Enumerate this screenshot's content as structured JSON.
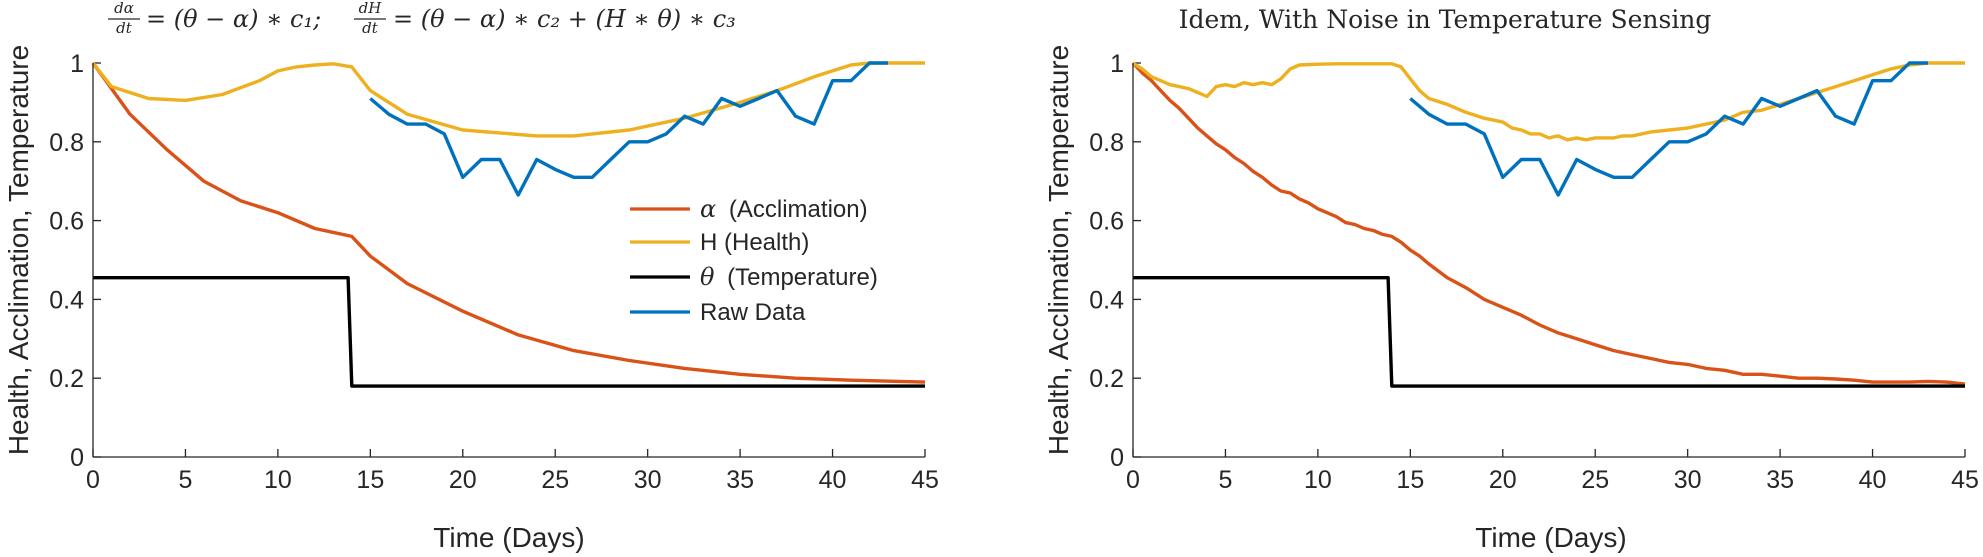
{
  "chart_data": [
    {
      "type": "line",
      "title_parts": {
        "frac1_num": "dα",
        "frac1_den": "dt",
        "eq1": "= (θ − α) ∗ c₁;",
        "frac2_num": "dH",
        "frac2_den": "dt",
        "eq2": "= (θ − α) ∗ c₂ + (H ∗ θ) ∗ c₃"
      },
      "xlabel": "Time (Days)",
      "ylabel": "Health, Acclimation, Temperature",
      "xlim": [
        0,
        45
      ],
      "ylim": [
        0,
        1
      ],
      "xticks": [
        0,
        5,
        10,
        15,
        20,
        25,
        30,
        35,
        40,
        45
      ],
      "yticks": [
        0,
        0.2,
        0.4,
        0.6,
        0.8,
        1
      ],
      "ytick_labels": [
        "0",
        "0.2",
        "0.4",
        "0.6",
        "0.8",
        "1"
      ],
      "grid": false,
      "legend": {
        "placement": "center-right",
        "entries": [
          {
            "symbol": "α",
            "text": "(Acclimation)",
            "series": "acclimation"
          },
          {
            "symbol": "",
            "text": "H (Health)",
            "series": "health"
          },
          {
            "symbol": "θ",
            "text": "(Temperature)",
            "series": "temperature"
          },
          {
            "symbol": "",
            "text": "Raw Data",
            "series": "raw"
          }
        ]
      },
      "series": [
        {
          "key": "acclimation",
          "color": "#D95319",
          "x": [
            0,
            2,
            4,
            6,
            8,
            10,
            12,
            13,
            14,
            15,
            17,
            20,
            23,
            26,
            29,
            32,
            35,
            38,
            41,
            45
          ],
          "y": [
            1.0,
            0.87,
            0.78,
            0.7,
            0.65,
            0.62,
            0.58,
            0.57,
            0.56,
            0.51,
            0.44,
            0.37,
            0.31,
            0.27,
            0.245,
            0.225,
            0.21,
            0.2,
            0.195,
            0.19
          ]
        },
        {
          "key": "health",
          "color": "#EDB120",
          "x": [
            0,
            1,
            3,
            5,
            7,
            9,
            10,
            11,
            12,
            13,
            14,
            15,
            17,
            20,
            24,
            26,
            29,
            32,
            35,
            37,
            39,
            41,
            42,
            45
          ],
          "y": [
            1.0,
            0.94,
            0.91,
            0.905,
            0.92,
            0.955,
            0.98,
            0.99,
            0.995,
            0.998,
            0.99,
            0.93,
            0.87,
            0.83,
            0.815,
            0.815,
            0.83,
            0.86,
            0.9,
            0.93,
            0.965,
            0.995,
            1.0,
            1.0
          ]
        },
        {
          "key": "temperature",
          "color": "#000000",
          "x": [
            0,
            13.8,
            14,
            45
          ],
          "y": [
            0.455,
            0.455,
            0.18,
            0.18
          ]
        },
        {
          "key": "raw",
          "color": "#0072BD",
          "x": [
            15,
            16,
            17,
            18,
            19,
            20,
            21,
            22,
            23,
            24,
            25,
            26,
            27,
            28,
            29,
            30,
            31,
            32,
            33,
            34,
            35,
            36,
            37,
            38,
            39,
            40,
            41,
            42,
            43
          ],
          "y": [
            0.91,
            0.87,
            0.845,
            0.845,
            0.82,
            0.71,
            0.755,
            0.755,
            0.665,
            0.755,
            0.73,
            0.71,
            0.71,
            0.755,
            0.8,
            0.8,
            0.82,
            0.865,
            0.845,
            0.91,
            0.89,
            0.91,
            0.93,
            0.865,
            0.845,
            0.955,
            0.955,
            1.0,
            1.0
          ]
        }
      ]
    },
    {
      "type": "line",
      "title": "Idem, With Noise in Temperature Sensing",
      "xlabel": "Time (Days)",
      "ylabel": "Health, Acclimation, Temperature",
      "xlim": [
        0,
        45
      ],
      "ylim": [
        0,
        1
      ],
      "xticks": [
        0,
        5,
        10,
        15,
        20,
        25,
        30,
        35,
        40,
        45
      ],
      "yticks": [
        0,
        0.2,
        0.4,
        0.6,
        0.8,
        1
      ],
      "ytick_labels": [
        "0",
        "0.2",
        "0.4",
        "0.6",
        "0.8",
        "1"
      ],
      "grid": false,
      "series": [
        {
          "key": "acclimation",
          "color": "#D95319",
          "x": [
            0,
            0.5,
            1,
            1.5,
            2,
            2.5,
            3,
            3.5,
            4,
            4.5,
            5,
            5.5,
            6,
            6.5,
            7,
            7.5,
            8,
            8.5,
            9,
            9.5,
            10,
            10.5,
            11,
            11.5,
            12,
            12.5,
            13,
            13.5,
            14,
            14.5,
            15,
            15.5,
            16,
            17,
            18,
            19,
            20,
            21,
            22,
            23,
            24,
            25,
            26,
            27,
            28,
            29,
            30,
            31,
            32,
            33,
            34,
            35,
            36,
            37,
            38,
            39,
            40,
            41,
            42,
            43,
            44,
            45
          ],
          "y": [
            1.0,
            0.975,
            0.955,
            0.93,
            0.905,
            0.885,
            0.86,
            0.835,
            0.815,
            0.795,
            0.78,
            0.76,
            0.745,
            0.725,
            0.71,
            0.69,
            0.675,
            0.67,
            0.655,
            0.645,
            0.63,
            0.62,
            0.61,
            0.595,
            0.59,
            0.58,
            0.575,
            0.565,
            0.56,
            0.545,
            0.525,
            0.51,
            0.49,
            0.455,
            0.43,
            0.4,
            0.38,
            0.36,
            0.335,
            0.315,
            0.3,
            0.285,
            0.27,
            0.26,
            0.25,
            0.24,
            0.235,
            0.225,
            0.22,
            0.21,
            0.21,
            0.205,
            0.2,
            0.2,
            0.198,
            0.195,
            0.19,
            0.19,
            0.19,
            0.192,
            0.19,
            0.185
          ]
        },
        {
          "key": "health",
          "color": "#EDB120",
          "x": [
            0,
            0.5,
            1,
            1.5,
            2,
            2.5,
            3,
            3.5,
            4,
            4.5,
            5,
            5.5,
            6,
            6.5,
            7,
            7.5,
            8,
            8.5,
            9,
            10,
            11,
            12,
            13,
            14,
            14.5,
            15,
            15.5,
            16,
            17,
            18,
            19,
            20,
            20.5,
            21,
            21.5,
            22,
            22.5,
            23,
            23.5,
            24,
            24.5,
            25,
            25.5,
            26,
            26.5,
            27,
            28,
            29,
            30,
            31,
            32,
            33,
            34,
            35,
            36,
            37,
            38,
            39,
            40,
            41,
            42,
            43,
            45
          ],
          "y": [
            1.0,
            0.985,
            0.965,
            0.955,
            0.945,
            0.94,
            0.935,
            0.925,
            0.915,
            0.94,
            0.945,
            0.94,
            0.95,
            0.945,
            0.95,
            0.945,
            0.96,
            0.985,
            0.995,
            0.997,
            0.998,
            0.998,
            0.998,
            0.998,
            0.99,
            0.96,
            0.93,
            0.91,
            0.895,
            0.875,
            0.86,
            0.85,
            0.835,
            0.83,
            0.82,
            0.82,
            0.81,
            0.815,
            0.805,
            0.81,
            0.805,
            0.81,
            0.81,
            0.81,
            0.815,
            0.815,
            0.825,
            0.83,
            0.835,
            0.845,
            0.855,
            0.875,
            0.88,
            0.895,
            0.91,
            0.925,
            0.94,
            0.955,
            0.97,
            0.985,
            0.995,
            1.0,
            1.0
          ]
        },
        {
          "key": "temperature",
          "color": "#000000",
          "x": [
            0,
            13.8,
            14,
            45
          ],
          "y": [
            0.455,
            0.455,
            0.18,
            0.18
          ]
        },
        {
          "key": "raw",
          "color": "#0072BD",
          "x": [
            15,
            16,
            17,
            18,
            19,
            20,
            21,
            22,
            23,
            24,
            25,
            26,
            27,
            28,
            29,
            30,
            31,
            32,
            33,
            34,
            35,
            36,
            37,
            38,
            39,
            40,
            41,
            42,
            43
          ],
          "y": [
            0.91,
            0.87,
            0.845,
            0.845,
            0.82,
            0.71,
            0.755,
            0.755,
            0.665,
            0.755,
            0.73,
            0.71,
            0.71,
            0.755,
            0.8,
            0.8,
            0.82,
            0.865,
            0.845,
            0.91,
            0.89,
            0.91,
            0.93,
            0.865,
            0.845,
            0.955,
            0.955,
            1.0,
            1.0
          ]
        }
      ]
    }
  ]
}
